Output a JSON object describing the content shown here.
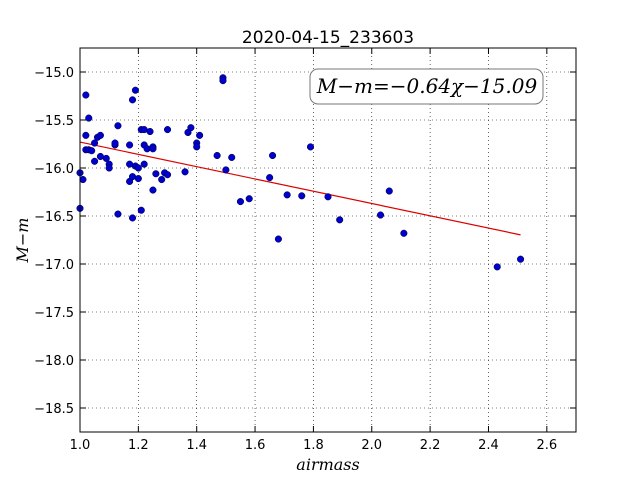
{
  "chart_data": {
    "type": "scatter",
    "title": "2020-04-15_233603",
    "xlabel": "airmass",
    "ylabel": "M−m",
    "xlim": [
      1.0,
      2.7
    ],
    "ylim": [
      -18.75,
      -14.75
    ],
    "y_inverted": false,
    "grid": true,
    "grid_style": "dotted",
    "xticks": [
      1.0,
      1.2,
      1.4,
      1.6,
      1.8,
      2.0,
      2.2,
      2.4,
      2.6
    ],
    "xtick_labels": [
      "1.0",
      "1.2",
      "1.4",
      "1.6",
      "1.8",
      "2.0",
      "2.2",
      "2.4",
      "2.6"
    ],
    "yticks": [
      -15.0,
      -15.5,
      -16.0,
      -16.5,
      -17.0,
      -17.5,
      -18.0,
      -18.5
    ],
    "ytick_labels": [
      "−15.0",
      "−15.5",
      "−16.0",
      "−16.5",
      "−17.0",
      "−17.5",
      "−18.0",
      "−18.5"
    ],
    "annotation": "M−m=−0.64χ−15.09",
    "annotation_placement": "top-right",
    "colors": {
      "points": "#0000cc",
      "fit": "#dd0000"
    },
    "series": [
      {
        "type": "scatter",
        "points": [
          [
            1.0,
            -16.05
          ],
          [
            1.0,
            -16.42
          ],
          [
            1.01,
            -16.12
          ],
          [
            1.02,
            -15.24
          ],
          [
            1.02,
            -15.66
          ],
          [
            1.02,
            -15.81
          ],
          [
            1.03,
            -15.81
          ],
          [
            1.03,
            -15.48
          ],
          [
            1.04,
            -15.82
          ],
          [
            1.05,
            -15.74
          ],
          [
            1.05,
            -15.93
          ],
          [
            1.06,
            -15.68
          ],
          [
            1.07,
            -15.66
          ],
          [
            1.07,
            -15.88
          ],
          [
            1.09,
            -15.9
          ],
          [
            1.1,
            -15.96
          ],
          [
            1.1,
            -16.0
          ],
          [
            1.12,
            -15.76
          ],
          [
            1.12,
            -15.74
          ],
          [
            1.13,
            -15.56
          ],
          [
            1.13,
            -16.48
          ],
          [
            1.17,
            -15.96
          ],
          [
            1.17,
            -15.76
          ],
          [
            1.17,
            -16.14
          ],
          [
            1.18,
            -15.29
          ],
          [
            1.18,
            -16.52
          ],
          [
            1.18,
            -16.09
          ],
          [
            1.19,
            -15.98
          ],
          [
            1.19,
            -15.19
          ],
          [
            1.2,
            -16.11
          ],
          [
            1.2,
            -16.0
          ],
          [
            1.21,
            -15.6
          ],
          [
            1.21,
            -16.44
          ],
          [
            1.22,
            -15.6
          ],
          [
            1.22,
            -15.76
          ],
          [
            1.22,
            -15.96
          ],
          [
            1.23,
            -15.8
          ],
          [
            1.24,
            -15.62
          ],
          [
            1.25,
            -16.23
          ],
          [
            1.25,
            -15.78
          ],
          [
            1.25,
            -15.8
          ],
          [
            1.26,
            -16.06
          ],
          [
            1.28,
            -16.12
          ],
          [
            1.29,
            -16.05
          ],
          [
            1.3,
            -16.07
          ],
          [
            1.3,
            -15.6
          ],
          [
            1.36,
            -16.04
          ],
          [
            1.37,
            -15.63
          ],
          [
            1.38,
            -15.58
          ],
          [
            1.4,
            -15.74
          ],
          [
            1.4,
            -15.78
          ],
          [
            1.41,
            -15.66
          ],
          [
            1.47,
            -15.87
          ],
          [
            1.49,
            -15.06
          ],
          [
            1.49,
            -15.09
          ],
          [
            1.5,
            -16.02
          ],
          [
            1.52,
            -15.89
          ],
          [
            1.55,
            -16.35
          ],
          [
            1.58,
            -16.32
          ],
          [
            1.65,
            -16.1
          ],
          [
            1.66,
            -15.87
          ],
          [
            1.68,
            -16.74
          ],
          [
            1.71,
            -16.28
          ],
          [
            1.76,
            -16.29
          ],
          [
            1.79,
            -15.78
          ],
          [
            1.85,
            -16.3
          ],
          [
            1.89,
            -16.54
          ],
          [
            2.03,
            -16.49
          ],
          [
            2.06,
            -16.24
          ],
          [
            2.11,
            -16.68
          ],
          [
            2.43,
            -17.03
          ],
          [
            2.51,
            -16.95
          ]
        ]
      },
      {
        "type": "line",
        "slope": -0.64,
        "intercept": -15.09,
        "x_range": [
          1.0,
          2.51
        ]
      }
    ]
  }
}
